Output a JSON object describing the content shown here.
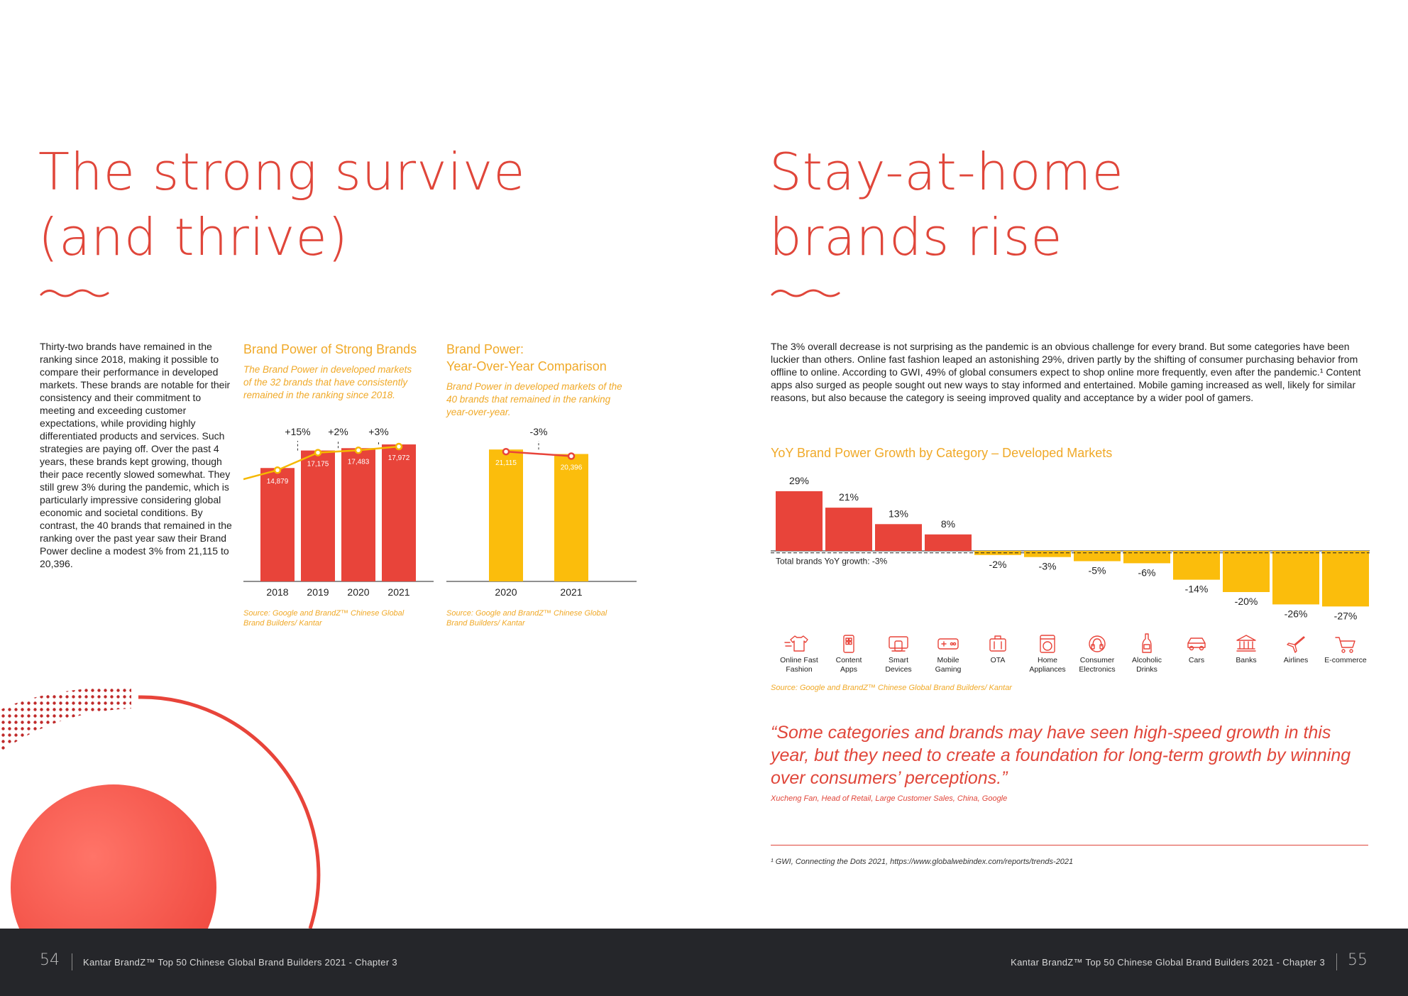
{
  "left": {
    "title": "The strong survive\n(and thrive)",
    "body": "Thirty-two brands have remained in the ranking since 2018, making it possible to compare their performance in developed markets. These brands are notable for their consistency and their commitment to meeting and exceeding customer expectations, while providing highly differentiated products and services. Such strategies are paying off. Over the past 4 years, these brands kept growing, though their pace recently slowed somewhat. They still grew 3% during the pandemic, which is particularly impressive considering global economic and societal conditions. By contrast, the 40 brands that remained in the ranking over the past year saw their Brand Power decline a modest 3% from 21,115 to 20,396."
  },
  "chart1": {
    "title": "Brand Power of Strong Brands",
    "subtitle": "The Brand Power in developed markets of the 32 brands that have consistently remained in the ranking since 2018.",
    "source": "Source: Google and BrandZ™ Chinese Global Brand Builders/ Kantar"
  },
  "chart2": {
    "title": "Brand Power:\nYear-Over-Year Comparison",
    "subtitle": "Brand Power in developed markets of the 40 brands that remained in the ranking year-over-year.",
    "source": "Source: Google and BrandZ™ Chinese Global Brand Builders/ Kantar"
  },
  "right": {
    "title": "Stay-at-home\nbrands rise",
    "body": "The 3% overall decrease is not surprising as the pandemic is an obvious challenge for every brand. But some categories have been luckier than others. Online fast fashion leaped an astonishing 29%, driven partly by the shifting of consumer purchasing behavior from offline to online. According to GWI, 49% of global consumers expect to shop online more frequently, even after the pandemic.¹ Content apps also surged as people sought out new ways to stay informed and entertained. Mobile gaming increased as well, likely for similar reasons, but also because the category is seeing improved quality and acceptance by a wider pool of gamers."
  },
  "chart3": {
    "title": "YoY Brand Power Growth by Category – Developed Markets",
    "total_label": "Total brands YoY growth: -3%",
    "source": "Source: Google and BrandZ™ Chinese Global Brand Builders/ Kantar"
  },
  "quote": {
    "text": "“Some categories and brands may have seen high-speed growth in this year, but they need to create a foundation for long-term growth by winning over consumers’ perceptions.”",
    "attribution": "Xucheng Fan, Head of Retail, Large Customer Sales, China, Google"
  },
  "footnote": "¹ GWI, Connecting the Dots 2021, https://www.globalwebindex.com/reports/trends-2021",
  "footer": {
    "left_page": "54",
    "left_text": "Kantar BrandZ™ Top 50 Chinese Global Brand Builders 2021 - Chapter 3",
    "right_text": "Kantar BrandZ™ Top 50 Chinese Global Brand Builders 2021 - Chapter 3",
    "right_page": "55"
  },
  "colors": {
    "red": "#e8443a",
    "yellow": "#fbbd0c",
    "title_red": "#e0463a",
    "footer_bg": "#25262a"
  },
  "chart_data": [
    {
      "type": "bar",
      "title": "Brand Power of Strong Brands",
      "categories": [
        "2018",
        "2019",
        "2020",
        "2021"
      ],
      "values": [
        14879,
        17175,
        17483,
        17972
      ],
      "value_labels": [
        "14,879",
        "17,175",
        "17,483",
        "17,972"
      ],
      "growth_labels": [
        "+15%",
        "+2%",
        "+3%"
      ],
      "color": "#e8443a",
      "line_color": "#f5b800",
      "ylim": [
        0,
        19000
      ]
    },
    {
      "type": "bar",
      "title": "Brand Power: Year-Over-Year Comparison",
      "categories": [
        "2020",
        "2021"
      ],
      "values": [
        21115,
        20396
      ],
      "value_labels": [
        "21,115",
        "20,396"
      ],
      "growth_labels": [
        "-3%"
      ],
      "color": "#fbbd0c",
      "line_color": "#e8443a",
      "ylim": [
        0,
        22500
      ]
    },
    {
      "type": "bar",
      "title": "YoY Brand Power Growth by Category – Developed Markets",
      "categories": [
        "Online Fast Fashion",
        "Content Apps",
        "Smart Devices",
        "Mobile Gaming",
        "OTA",
        "Home Appliances",
        "Consumer Electronics",
        "Alcoholic Drinks",
        "Cars",
        "Banks",
        "Airlines",
        "E-commerce"
      ],
      "values": [
        29,
        21,
        13,
        8,
        -2,
        -3,
        -5,
        -6,
        -14,
        -20,
        -26,
        -27
      ],
      "value_labels": [
        "29%",
        "21%",
        "13%",
        "8%",
        "-2%",
        "-3%",
        "-5%",
        "-6%",
        "-14%",
        "-20%",
        "-26%",
        "-27%"
      ],
      "reference_line": -3,
      "positive_color": "#e8443a",
      "negative_color": "#fbbd0c",
      "icons": [
        "tshirt-icon",
        "phone-apps-icon",
        "smart-devices-icon",
        "gamepad-icon",
        "suitcase-icon",
        "washing-machine-icon",
        "headphones-icon",
        "bottle-icon",
        "car-icon",
        "bank-icon",
        "airplane-icon",
        "shopping-cart-icon"
      ]
    }
  ]
}
